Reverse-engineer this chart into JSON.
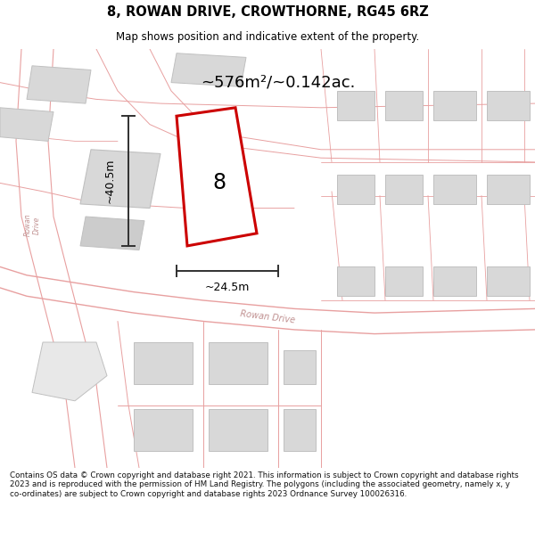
{
  "title": "8, ROWAN DRIVE, CROWTHORNE, RG45 6RZ",
  "subtitle": "Map shows position and indicative extent of the property.",
  "area_label": "~576m²/~0.142ac.",
  "property_number": "8",
  "dim_height": "~40.5m",
  "dim_width": "~24.5m",
  "footer": "Contains OS data © Crown copyright and database right 2021. This information is subject to Crown copyright and database rights 2023 and is reproduced with the permission of HM Land Registry. The polygons (including the associated geometry, namely x, y co-ordinates) are subject to Crown copyright and database rights 2023 Ordnance Survey 100026316.",
  "bg_color": "#ffffff",
  "map_bg": "#f8f8f8",
  "building_fill": "#d8d8d8",
  "building_edge": "#c0c0c0",
  "road_line_color": "#e8a0a0",
  "plot_outline_color": "#cc0000",
  "dim_color": "#303030",
  "title_color": "#000000",
  "road_label_color": "#c09090"
}
